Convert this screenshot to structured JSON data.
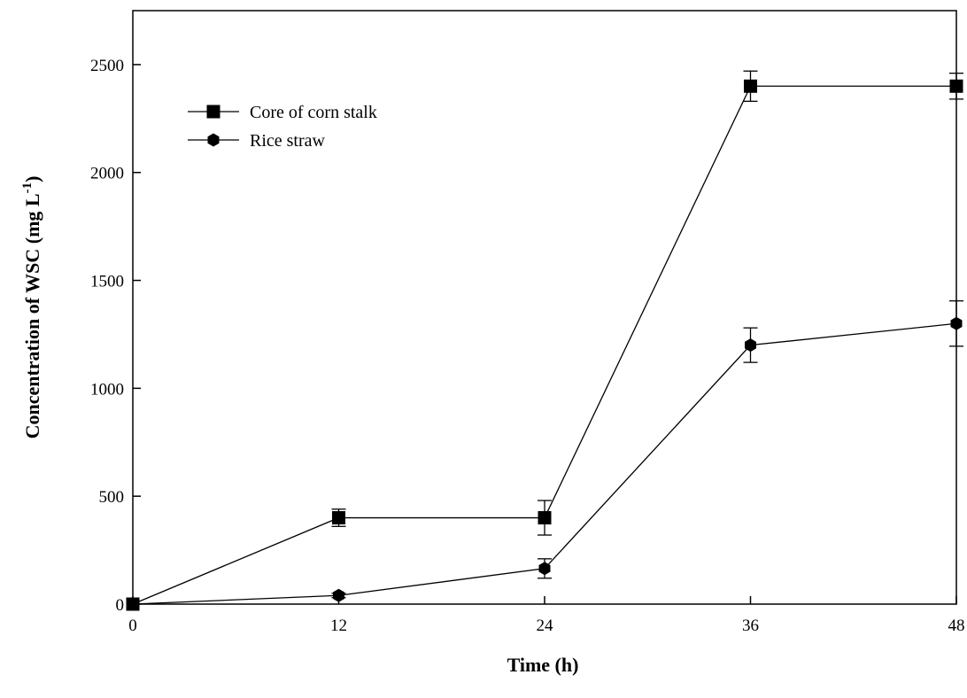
{
  "chart_data": {
    "type": "line",
    "title": "",
    "xlabel": "Time (h)",
    "ylabel": "Concentration of WSC (mg L",
    "ylabel_superscript": "-1",
    "ylabel_suffix": ")",
    "x": [
      0,
      12,
      24,
      36,
      48
    ],
    "x_ticks": [
      "0",
      "12",
      "24",
      "36",
      "48"
    ],
    "y_ticks": [
      "0",
      "500",
      "1000",
      "1500",
      "2000",
      "2500"
    ],
    "xlim": [
      0,
      48
    ],
    "ylim": [
      0,
      2750
    ],
    "grid": false,
    "legend_position": "top-left",
    "series": [
      {
        "name": "Core of corn stalk",
        "marker": "square",
        "color": "#000000",
        "values": [
          0,
          400,
          400,
          2400,
          2400
        ],
        "errors": [
          0,
          40,
          80,
          70,
          60
        ]
      },
      {
        "name": "Rice straw",
        "marker": "hexagon",
        "color": "#000000",
        "values": [
          0,
          40,
          165,
          1200,
          1300
        ],
        "errors": [
          0,
          10,
          45,
          80,
          105
        ]
      }
    ]
  }
}
